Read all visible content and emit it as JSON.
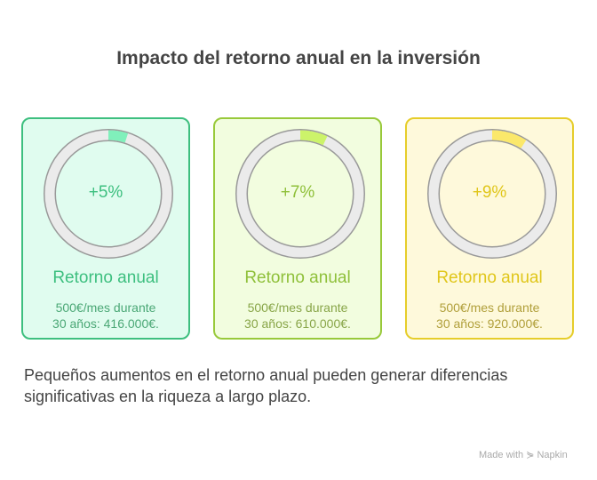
{
  "title": "Impacto del retorno anual en la inversión",
  "cards": [
    {
      "percent_label": "+5%",
      "value": 5,
      "label": "Retorno anual",
      "desc_line1": "500€/mes durante",
      "desc_line2": "30 años: 416.000€.",
      "border": "#3dbf7f",
      "bg": "#e0fcef",
      "fill": "#80f0bb",
      "text": "#3dbf7f",
      "desc": "#4aa775"
    },
    {
      "percent_label": "+7%",
      "value": 7,
      "label": "Retorno anual",
      "desc_line1": "500€/mes durante",
      "desc_line2": "30 años: 610.000€.",
      "border": "#98c93a",
      "bg": "#f2fddf",
      "fill": "#ccf36a",
      "text": "#8fc03a",
      "desc": "#88a548"
    },
    {
      "percent_label": "+9%",
      "value": 9,
      "label": "Retorno anual",
      "desc_line1": "500€/mes durante",
      "desc_line2": "30 años: 920.000€.",
      "border": "#e6cd2a",
      "bg": "#fef9db",
      "fill": "#fbe86b",
      "text": "#e0c61a",
      "desc": "#b09f3a"
    }
  ],
  "footer": "Pequeños aumentos en el retorno anual pueden generar diferencias significativas en la riqueza a largo plazo.",
  "brand": "Made with ⋟ Napkin"
}
